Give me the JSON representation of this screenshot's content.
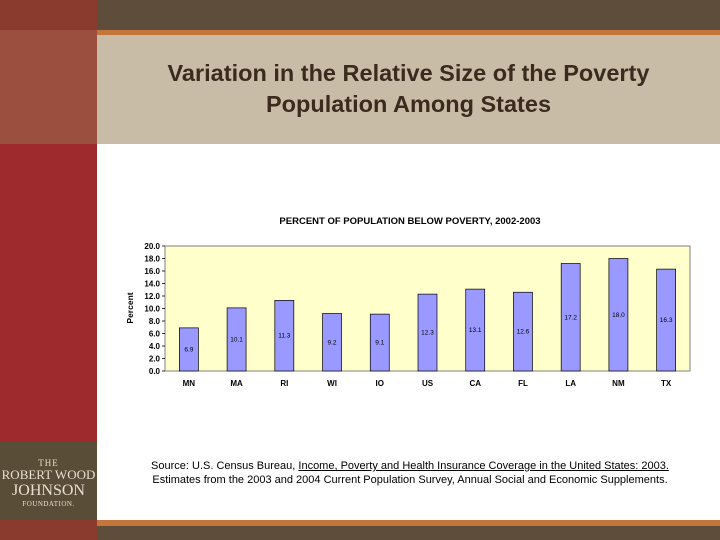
{
  "slide": {
    "title_line1": "Variation in the Relative Size of the Poverty",
    "title_line2": "Population Among States"
  },
  "logo": {
    "line1": "THE",
    "line2": "ROBERT WOOD",
    "line3": "JOHNSON",
    "line4": "FOUNDATION."
  },
  "source": {
    "prefix": "Source: U.S. Census Bureau, ",
    "link_text": "Income, Poverty and Health Insurance Coverage in the United States: 2003.",
    "line2": "Estimates from the 2003 and 2004 Current Population Survey, Annual Social and Economic Supplements."
  },
  "colors": {
    "bar_fill": "#9999ff",
    "plot_bg": "#ffffcc",
    "accent": "#c4763a"
  },
  "chart_data": {
    "type": "bar",
    "title": "PERCENT OF POPULATION BELOW POVERTY, 2002-2003",
    "xlabel": "",
    "ylabel": "Percent",
    "categories": [
      "MN",
      "MA",
      "RI",
      "WI",
      "IO",
      "US",
      "CA",
      "FL",
      "LA",
      "NM",
      "TX"
    ],
    "values": [
      6.9,
      10.1,
      11.3,
      9.2,
      9.1,
      12.3,
      13.1,
      12.6,
      17.2,
      18.0,
      16.3
    ],
    "value_labels": [
      "6.9",
      "10.1",
      "11.3",
      "9.2",
      "9.1",
      "12.3",
      "13.1",
      "12.6",
      "17.2",
      "18.0",
      "16.3"
    ],
    "ylim": [
      0,
      20
    ],
    "yticks": [
      0,
      2,
      4,
      6,
      8,
      10,
      12,
      14,
      16,
      18,
      20
    ],
    "ytick_labels": [
      "0.0",
      "2.0",
      "4.0",
      "6.0",
      "8.0",
      "10.0",
      "12.0",
      "14.0",
      "16.0",
      "18.0",
      "20.0"
    ],
    "grid": false,
    "legend": "none"
  }
}
